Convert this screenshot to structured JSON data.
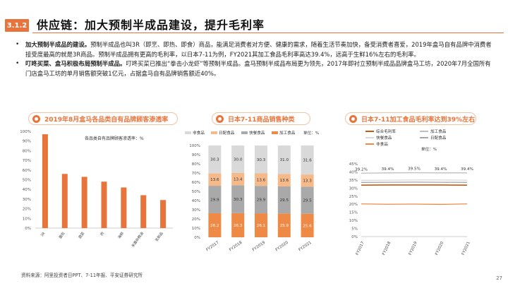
{
  "header": {
    "section_badge": "3.1.2",
    "title": "供应链：加大预制半成品建设，提升毛利率"
  },
  "bullets": [
    {
      "bold": "加大预制半成品的建设。",
      "text": "预制半成品也叫3R（即烹、即热、即食）商品，能满足消费者对方便、健康的需求，随着生活节奏加快，备受消费者喜爱，2019年盒马自有品牌中消费者接受度最高的就是3R商品。预制半成品拥有更高的毛利率，以日本7-11为例，FY2021其加工食品毛利率高达39.4%，远高于生鲜16%左右的毛利率。"
    },
    {
      "bold": "叮咚买菜、盒马积极布局预制半成品。",
      "text": "叮咚买菜已推出“拳击小龙虾”等预制半成品。盒马预制半成品布局更为领先，2017年即衬立预制半成品品牌盒马工坊，2020年7月全国所有门店盒马工坊的单月销售额突破1亿元，占据盒马自有品牌销售额近40%。"
    }
  ],
  "panels": [
    {
      "title": "2019年8月盒马各品类自有品牌顾客渗透率"
    },
    {
      "title": "日本7-11商品销售种类"
    },
    {
      "title": "日本7-11加工食品毛利率达到39%左右"
    }
  ],
  "chart_data": [
    {
      "type": "bar",
      "title": "各品类自有品牌顾客渗透率：%",
      "categories": [
        "3R",
        "面包",
        "蔬菜",
        "肉",
        "海鲜",
        "米面杂粮油",
        "乳制品"
      ],
      "values": [
        97,
        56,
        53,
        48,
        42,
        34,
        29
      ],
      "ylim": [
        0,
        100
      ],
      "yticks": [
        "0%",
        "10%",
        "20%",
        "30%",
        "40%",
        "50%",
        "60%",
        "70%",
        "80%",
        "90%",
        "100%"
      ],
      "color": "#e8743b"
    },
    {
      "type": "bar",
      "stacked": true,
      "unit_label": "单位：%",
      "categories": [
        "FY2017",
        "FY2018",
        "FY2019",
        "FY2020",
        "FY2021"
      ],
      "yticks": [
        "0%",
        "10%",
        "20%",
        "30%",
        "40%",
        "50%",
        "60%",
        "70%",
        "80%",
        "90%",
        "100%"
      ],
      "series": [
        {
          "name": "加工食品",
          "values": [
            26.2,
            26.3,
            26.1,
            25.9,
            25.6
          ],
          "color": "#ee8a45"
        },
        {
          "name": "快餐食品",
          "values": [
            29.9,
            30.3,
            29.9,
            29.5,
            29.5
          ],
          "color": "#a9a9a9"
        },
        {
          "name": "日配食品",
          "values": [
            13.6,
            13.4,
            13.6,
            13.6,
            13.3
          ],
          "color": "#f6b98a"
        },
        {
          "name": "非食品",
          "values": [
            30.3,
            30.0,
            30.3,
            31.0,
            31.6
          ],
          "color": "#d9d9d9"
        }
      ],
      "legend": "top",
      "label_values": [
        [
          "26.2",
          "26.3",
          "26.1",
          "25.9",
          "25.6"
        ],
        [
          "29.9",
          "30.3",
          "29.9",
          "29.5",
          "29.5"
        ],
        [
          "13.6",
          "13.4",
          "13.6",
          "13.6",
          "13.3"
        ],
        [
          "30.3",
          "30.0",
          "30.3",
          "31.0",
          "31.6"
        ]
      ]
    },
    {
      "type": "line",
      "unit_label": "单位：%",
      "categories": [
        "FY2017",
        "FY2018",
        "FY2019",
        "FY2020",
        "FY2021"
      ],
      "ylim": [
        0,
        45
      ],
      "yticks": [
        "0%",
        "5%",
        "10%",
        "15%",
        "20%",
        "25%",
        "30%",
        "35%",
        "40%",
        "45%"
      ],
      "series": [
        {
          "name": "综合毛利率",
          "values": [
            31.8,
            31.9,
            31.9,
            31.9,
            31.8
          ],
          "color": "#c65911"
        },
        {
          "name": "加工食品",
          "values": [
            39.2,
            39.4,
            39.5,
            39.4,
            39.4
          ],
          "color": "#bfbfbf"
        },
        {
          "name": "快餐食品",
          "values": [
            34.8,
            34.9,
            35.0,
            35.0,
            34.9
          ],
          "color": "#d9d9d9"
        },
        {
          "name": "日配食品",
          "values": [
            33.5,
            33.6,
            33.7,
            33.6,
            33.5
          ],
          "color": "#a6a6a6"
        },
        {
          "name": "非食品",
          "values": [
            20.2,
            20.0,
            20.1,
            19.9,
            20.2
          ],
          "color": "#ee8a45"
        }
      ],
      "point_labels": [
        "39.2%",
        "39.4%",
        "39.5%",
        "39.4%",
        "39.4%"
      ],
      "legend": "top-left"
    }
  ],
  "footer": {
    "source": "资料来源：阿里投资者日PPT、7-11年报、平安证券研究所",
    "page": "27"
  }
}
